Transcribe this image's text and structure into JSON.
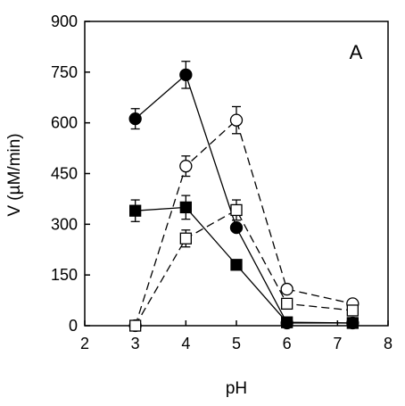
{
  "chart_data": {
    "type": "line",
    "title": "",
    "panel_label": "A",
    "xlabel": "pH",
    "ylabel": "V (µM/min)",
    "xlim": [
      2,
      8
    ],
    "ylim": [
      0,
      900
    ],
    "xticks": [
      "2",
      "3",
      "4",
      "5",
      "6",
      "7",
      "8"
    ],
    "yticks": [
      "0",
      "150",
      "300",
      "450",
      "600",
      "750",
      "900"
    ],
    "grid": false,
    "series": [
      {
        "marker": "circle-filled",
        "line": "solid",
        "x": [
          3,
          4,
          5,
          6,
          7.3
        ],
        "values": [
          612,
          742,
          290,
          8,
          8
        ],
        "err": [
          30,
          40,
          0,
          0,
          0
        ]
      },
      {
        "marker": "circle-open",
        "line": "dashed",
        "x": [
          3,
          4,
          5,
          6,
          7.3
        ],
        "values": [
          0,
          472,
          608,
          108,
          65
        ],
        "err": [
          0,
          30,
          40,
          0,
          0
        ]
      },
      {
        "marker": "square-filled",
        "line": "solid",
        "x": [
          3,
          4,
          5,
          6,
          7.3
        ],
        "values": [
          340,
          350,
          180,
          10,
          8
        ],
        "err": [
          32,
          35,
          0,
          0,
          0
        ]
      },
      {
        "marker": "square-open",
        "line": "dashed",
        "x": [
          3,
          4,
          5,
          6,
          7.3
        ],
        "values": [
          0,
          258,
          342,
          65,
          45
        ],
        "err": [
          0,
          25,
          30,
          0,
          0
        ]
      }
    ]
  }
}
